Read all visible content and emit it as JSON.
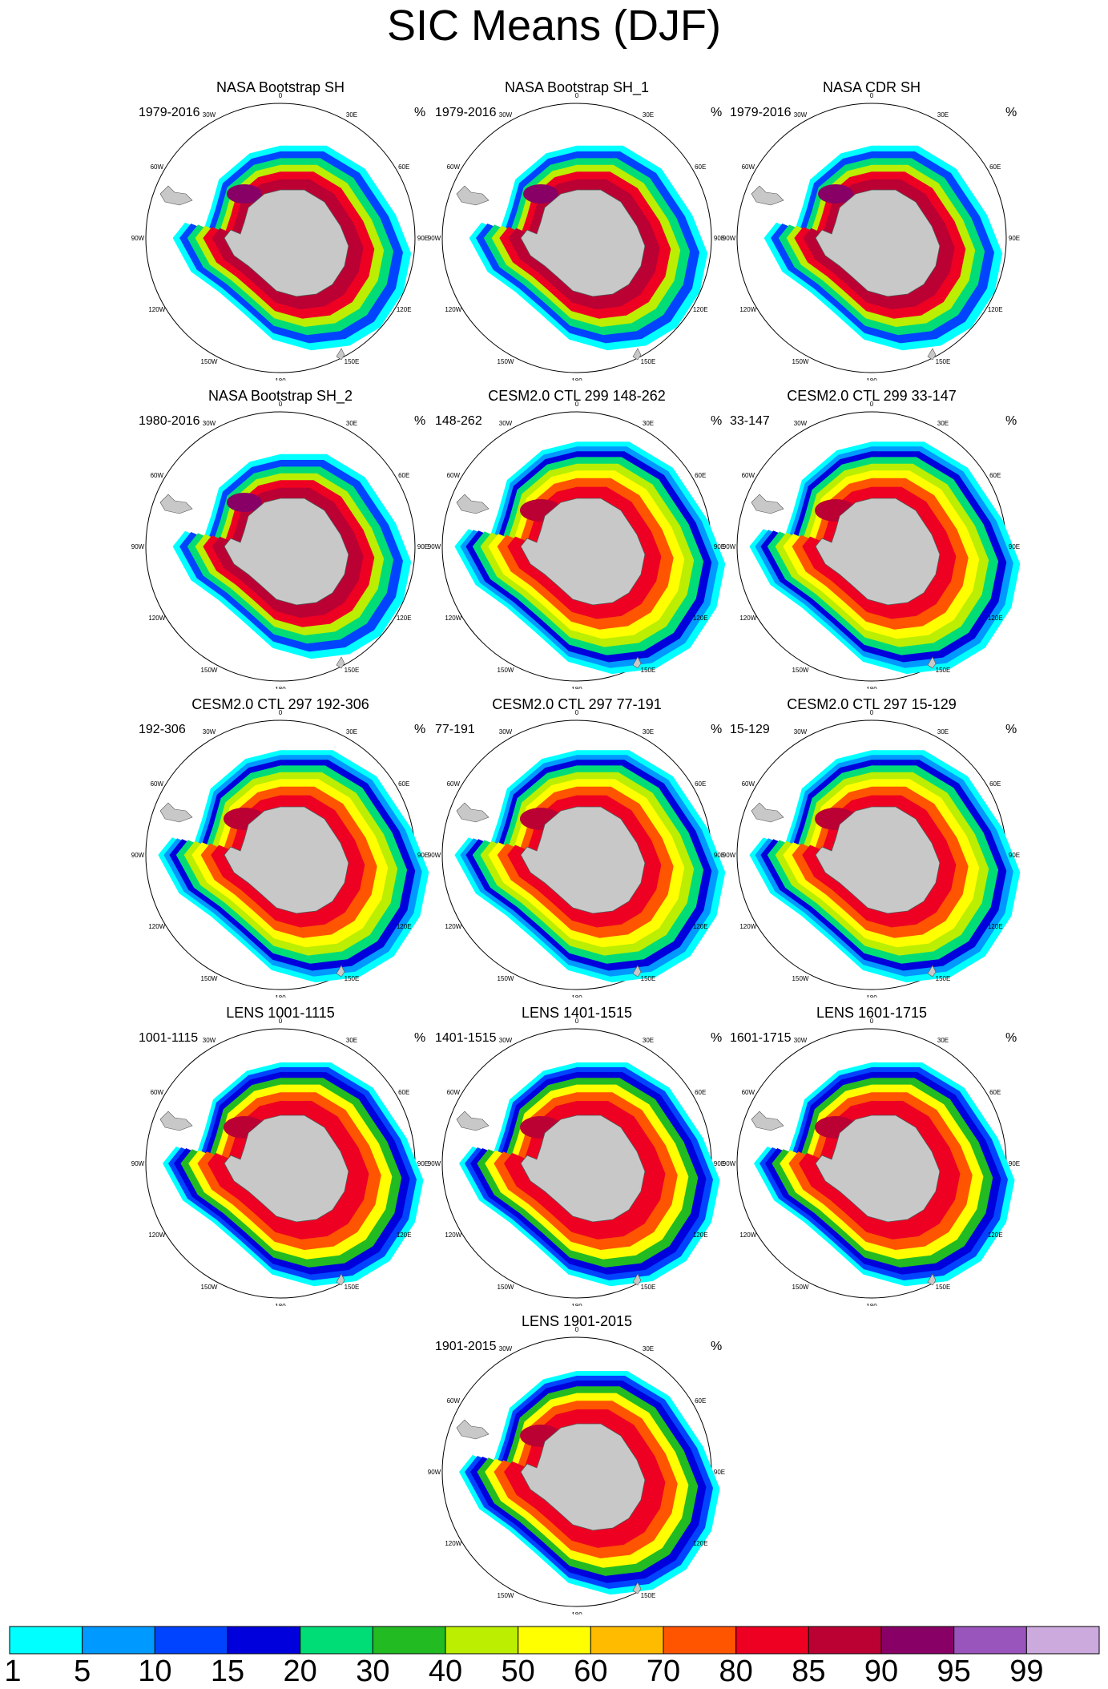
{
  "title": "SIC Means (DJF)",
  "units": "%",
  "lon_labels": [
    "0",
    "30E",
    "60E",
    "90E",
    "120E",
    "150E",
    "180",
    "150W",
    "120W",
    "90W",
    "60W",
    "30W"
  ],
  "panels": [
    {
      "title": "NASA Bootstrap SH",
      "period": "1979-2016",
      "kind": "obs"
    },
    {
      "title": "NASA Bootstrap SH_1",
      "period": "1979-2016",
      "kind": "obs"
    },
    {
      "title": "NASA CDR SH",
      "period": "1979-2016",
      "kind": "obs"
    },
    {
      "title": "NASA Bootstrap SH_2",
      "period": "1980-2016",
      "kind": "obs"
    },
    {
      "title": "CESM2.0 CTL 299 148-262",
      "period": "148-262",
      "kind": "cesm"
    },
    {
      "title": "CESM2.0 CTL 299 33-147",
      "period": "33-147",
      "kind": "cesm"
    },
    {
      "title": "CESM2.0 CTL 297 192-306",
      "period": "192-306",
      "kind": "cesm"
    },
    {
      "title": "CESM2.0 CTL 297 77-191",
      "period": "77-191",
      "kind": "cesm"
    },
    {
      "title": "CESM2.0 CTL 297 15-129",
      "period": "15-129",
      "kind": "cesm"
    },
    {
      "title": "LENS 1001-1115",
      "period": "1001-1115",
      "kind": "lens"
    },
    {
      "title": "LENS 1401-1515",
      "period": "1401-1515",
      "kind": "lens"
    },
    {
      "title": "LENS 1601-1715",
      "period": "1601-1715",
      "kind": "lens"
    },
    {
      "title": "LENS 1901-2015",
      "period": "1901-2015",
      "kind": "lens"
    }
  ],
  "colorbar": {
    "labels": [
      "1",
      "5",
      "10",
      "15",
      "20",
      "30",
      "40",
      "50",
      "60",
      "70",
      "80",
      "85",
      "90",
      "95",
      "99"
    ],
    "colors": [
      "#00ffff",
      "#0099ff",
      "#0044ff",
      "#0000dd",
      "#00dd77",
      "#22bb22",
      "#bbee00",
      "#ffff00",
      "#ffbb00",
      "#ff5500",
      "#ee0022",
      "#bb0033",
      "#880066",
      "#9955bb",
      "#ccaadd"
    ]
  }
}
